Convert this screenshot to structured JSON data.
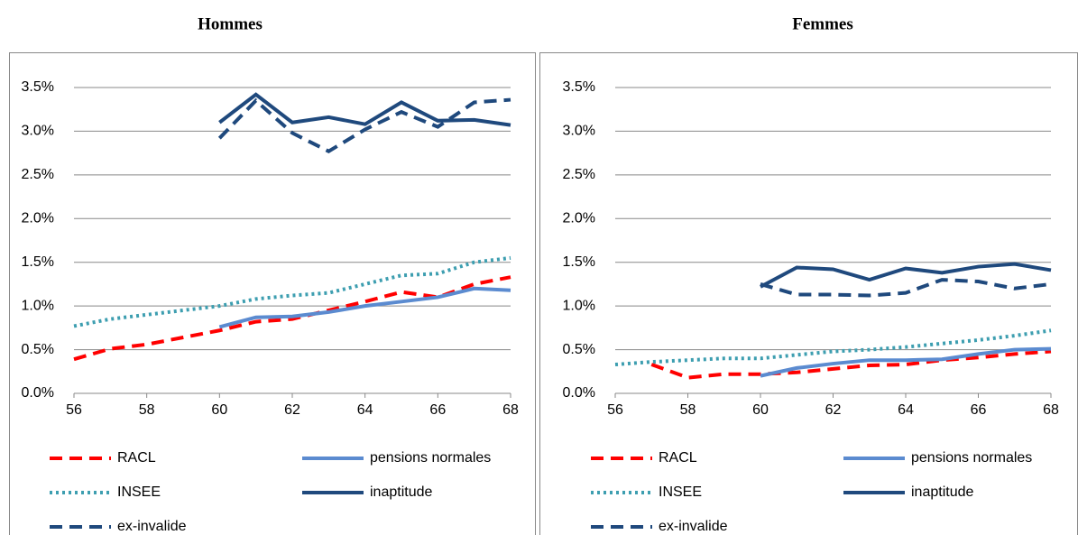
{
  "chart_data": [
    {
      "type": "line",
      "title": "Hommes",
      "x": [
        56,
        57,
        58,
        59,
        60,
        61,
        62,
        63,
        64,
        65,
        66,
        67,
        68
      ],
      "xlim": [
        56,
        68
      ],
      "xticks": [
        56,
        58,
        60,
        62,
        64,
        66,
        68
      ],
      "ylim": [
        0,
        3.5
      ],
      "yticks": [
        {
          "value": 0,
          "label": "0.0%"
        },
        {
          "value": 0.5,
          "label": "0.5%"
        },
        {
          "value": 1,
          "label": "1.0%"
        },
        {
          "value": 1.5,
          "label": "1.5%"
        },
        {
          "value": 2,
          "label": "2.0%"
        },
        {
          "value": 2.5,
          "label": "2.5%"
        },
        {
          "value": 3,
          "label": "3.0%"
        },
        {
          "value": 3.5,
          "label": "3.5%"
        }
      ],
      "grid": true,
      "series": [
        {
          "name": "RACL",
          "color": "#ff0000",
          "style": "dashed",
          "values": [
            0.39,
            0.51,
            0.56,
            0.64,
            0.72,
            0.82,
            0.85,
            0.95,
            1.05,
            1.16,
            1.1,
            1.25,
            1.33
          ]
        },
        {
          "name": "pensions normales",
          "color": "#5b8bd0",
          "style": "solid",
          "values": [
            null,
            null,
            null,
            null,
            0.76,
            0.87,
            0.88,
            0.93,
            1.0,
            1.05,
            1.1,
            1.2,
            1.18
          ]
        },
        {
          "name": "INSEE",
          "color": "#3d9eb0",
          "style": "dotted",
          "values": [
            0.77,
            0.85,
            0.9,
            0.95,
            1.0,
            1.08,
            1.12,
            1.15,
            1.25,
            1.35,
            1.37,
            1.5,
            1.55
          ]
        },
        {
          "name": "inaptitude",
          "color": "#1f497d",
          "style": "solid",
          "values": [
            null,
            null,
            null,
            null,
            3.1,
            3.42,
            3.1,
            3.16,
            3.08,
            3.33,
            3.12,
            3.13,
            3.07
          ]
        },
        {
          "name": "ex-invalide",
          "color": "#1f497d",
          "style": "dashed",
          "values": [
            null,
            null,
            null,
            null,
            2.92,
            3.35,
            2.98,
            2.77,
            3.02,
            3.22,
            3.05,
            3.33,
            3.36
          ]
        }
      ]
    },
    {
      "type": "line",
      "title": "Femmes",
      "x": [
        56,
        57,
        58,
        59,
        60,
        61,
        62,
        63,
        64,
        65,
        66,
        67,
        68
      ],
      "xlim": [
        56,
        68
      ],
      "xticks": [
        56,
        58,
        60,
        62,
        64,
        66,
        68
      ],
      "ylim": [
        0,
        3.5
      ],
      "yticks": [
        {
          "value": 0,
          "label": "0.0%"
        },
        {
          "value": 0.5,
          "label": "0.5%"
        },
        {
          "value": 1,
          "label": "1.0%"
        },
        {
          "value": 1.5,
          "label": "1.5%"
        },
        {
          "value": 2,
          "label": "2.0%"
        },
        {
          "value": 2.5,
          "label": "2.5%"
        },
        {
          "value": 3,
          "label": "3.0%"
        },
        {
          "value": 3.5,
          "label": "3.5%"
        }
      ],
      "grid": true,
      "series": [
        {
          "name": "RACL",
          "color": "#ff0000",
          "style": "dashed",
          "values": [
            null,
            0.33,
            0.18,
            0.22,
            0.22,
            0.24,
            0.28,
            0.32,
            0.33,
            0.38,
            0.41,
            0.45,
            0.48
          ]
        },
        {
          "name": "pensions normales",
          "color": "#5b8bd0",
          "style": "solid",
          "values": [
            null,
            null,
            null,
            null,
            0.2,
            0.29,
            0.34,
            0.38,
            0.38,
            0.39,
            0.45,
            0.5,
            0.51
          ]
        },
        {
          "name": "INSEE",
          "color": "#3d9eb0",
          "style": "dotted",
          "values": [
            0.33,
            0.36,
            0.38,
            0.4,
            0.4,
            0.44,
            0.48,
            0.5,
            0.53,
            0.57,
            0.61,
            0.66,
            0.72
          ]
        },
        {
          "name": "inaptitude",
          "color": "#1f497d",
          "style": "solid",
          "values": [
            null,
            null,
            null,
            null,
            1.22,
            1.44,
            1.42,
            1.3,
            1.43,
            1.38,
            1.45,
            1.48,
            1.41
          ]
        },
        {
          "name": "ex-invalide",
          "color": "#1f497d",
          "style": "dashed",
          "values": [
            null,
            null,
            null,
            null,
            1.25,
            1.13,
            1.13,
            1.12,
            1.15,
            1.3,
            1.28,
            1.2,
            1.25
          ]
        }
      ]
    }
  ]
}
